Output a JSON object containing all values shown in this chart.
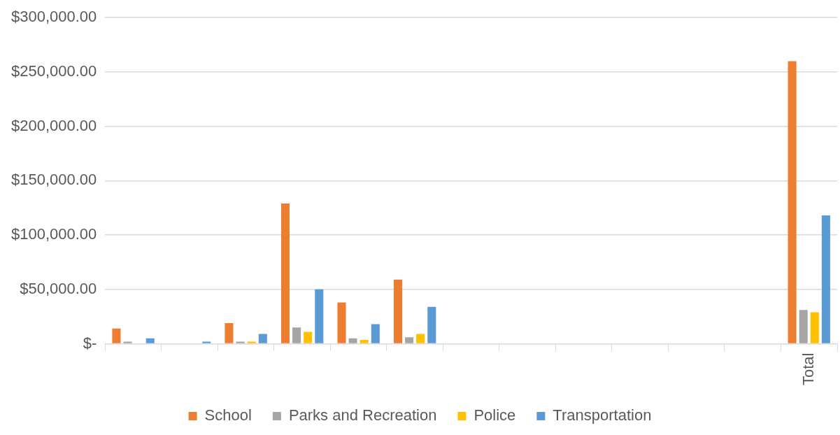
{
  "chart_data": {
    "type": "bar",
    "categories": [
      null,
      null,
      null,
      null,
      null,
      null,
      null,
      null,
      null,
      null,
      null,
      null,
      "Total"
    ],
    "series": [
      {
        "name": "School",
        "color": "#ed7d31",
        "values": [
          14000,
          0,
          19000,
          129000,
          38000,
          59000,
          null,
          null,
          null,
          null,
          null,
          null,
          260000
        ]
      },
      {
        "name": "Parks and Recreation",
        "color": "#a5a5a5",
        "values": [
          2000,
          0,
          2000,
          15000,
          5000,
          6000,
          null,
          null,
          null,
          null,
          null,
          null,
          31000
        ]
      },
      {
        "name": "Police",
        "color": "#ffc000",
        "values": [
          0,
          0,
          2000,
          11000,
          3500,
          9000,
          null,
          null,
          null,
          null,
          null,
          null,
          29000
        ]
      },
      {
        "name": "Transportation",
        "color": "#5b9bd5",
        "values": [
          5000,
          2000,
          9000,
          50000,
          18000,
          34000,
          null,
          null,
          null,
          null,
          null,
          null,
          118000
        ]
      }
    ],
    "ylim": [
      0,
      300000
    ],
    "yticks": [
      {
        "value": 0,
        "label": "$-"
      },
      {
        "value": 50000,
        "label": "$50,000.00"
      },
      {
        "value": 100000,
        "label": "$100,000.00"
      },
      {
        "value": 150000,
        "label": "$150,000.00"
      },
      {
        "value": 200000,
        "label": "$200,000.00"
      },
      {
        "value": 250000,
        "label": "$250,000.00"
      },
      {
        "value": 300000,
        "label": "$300,000.00"
      }
    ],
    "grid": "y",
    "legend": "bottom"
  }
}
